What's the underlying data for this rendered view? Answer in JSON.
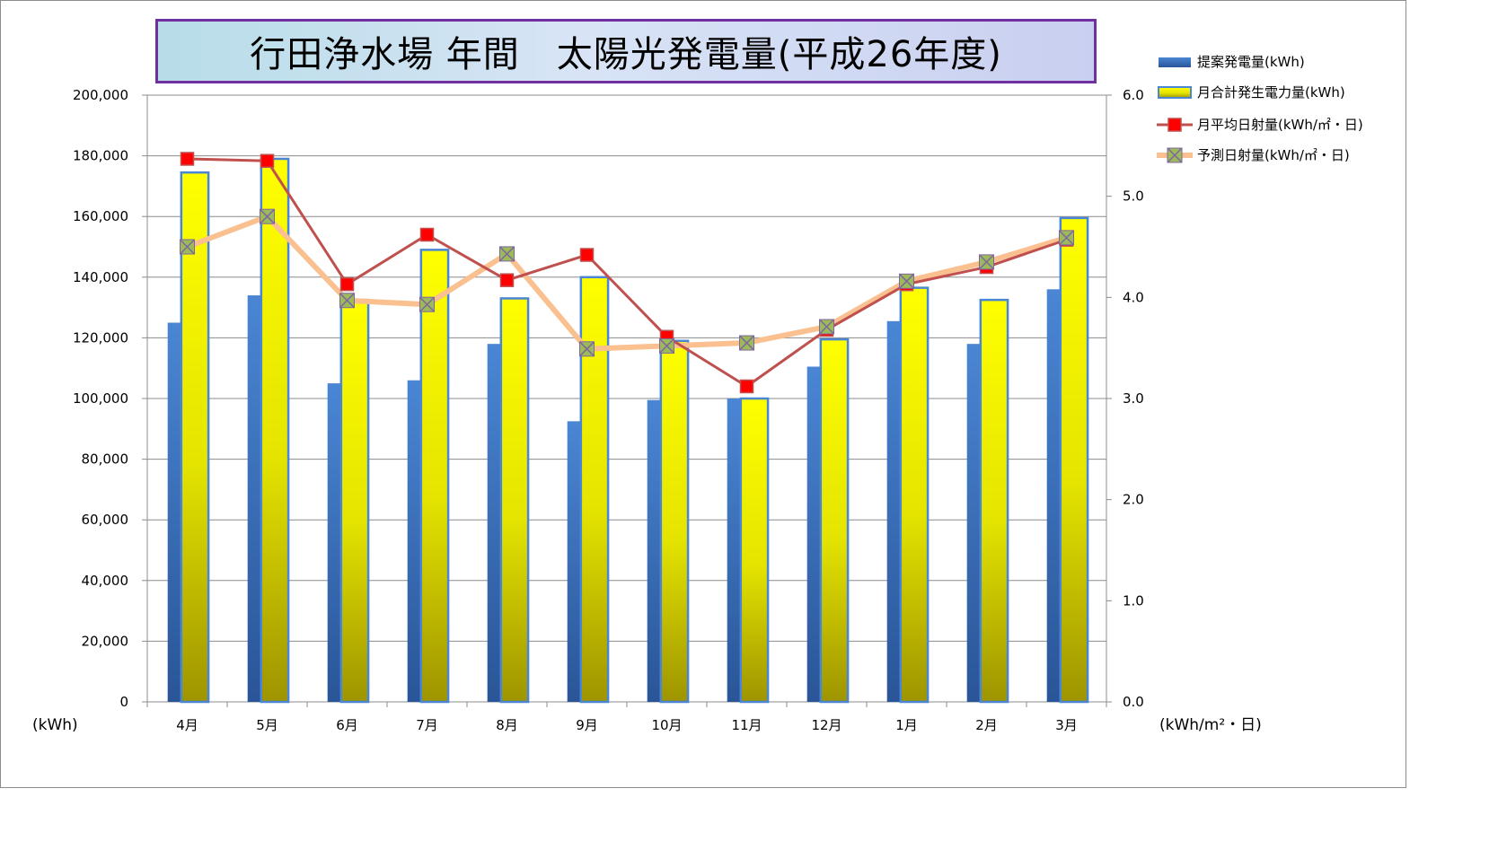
{
  "chart_data": {
    "type": "bar",
    "title": "行田浄水場 年間　太陽光発電量(平成26年度)",
    "categories": [
      "4月",
      "5月",
      "6月",
      "7月",
      "8月",
      "9月",
      "10月",
      "11月",
      "12月",
      "1月",
      "2月",
      "3月"
    ],
    "ylabel": "(kWh)",
    "y2label": "(kWh/m²・日)",
    "ylim": [
      0,
      200000
    ],
    "y2lim": [
      0.0,
      6.0
    ],
    "yticks": [
      "0",
      "20,000",
      "40,000",
      "60,000",
      "80,000",
      "100,000",
      "120,000",
      "140,000",
      "160,000",
      "180,000",
      "200,000"
    ],
    "y2ticks": [
      "0.0",
      "1.0",
      "2.0",
      "3.0",
      "4.0",
      "5.0",
      "6.0"
    ],
    "grid": true,
    "legend_position": "top-right",
    "series": [
      {
        "name": "提案発電量(kWh)",
        "kind": "bar",
        "axis": "left",
        "color": "#3a75c4",
        "values": [
          125000,
          134000,
          105000,
          106000,
          118000,
          92500,
          99500,
          100000,
          110500,
          125500,
          118000,
          136000
        ]
      },
      {
        "name": "月合計発生電力量(kWh)",
        "kind": "bar",
        "axis": "left",
        "color": "#ffff00",
        "values": [
          174500,
          179000,
          132500,
          149000,
          133000,
          140000,
          119000,
          100000,
          119500,
          136500,
          132500,
          159500
        ]
      },
      {
        "name": "月平均日射量(kWh/㎡・日)",
        "kind": "line",
        "axis": "right",
        "color": "#c0504d",
        "values": [
          5.37,
          5.35,
          4.13,
          4.62,
          4.17,
          4.42,
          3.61,
          3.12,
          3.68,
          4.13,
          4.3,
          4.57
        ]
      },
      {
        "name": "予測日射量(kWh/㎡・日)",
        "kind": "line",
        "axis": "right",
        "color": "#fac090",
        "values": [
          4.5,
          4.8,
          3.97,
          3.93,
          4.43,
          3.49,
          3.52,
          3.55,
          3.71,
          4.16,
          4.35,
          4.59
        ]
      }
    ]
  }
}
